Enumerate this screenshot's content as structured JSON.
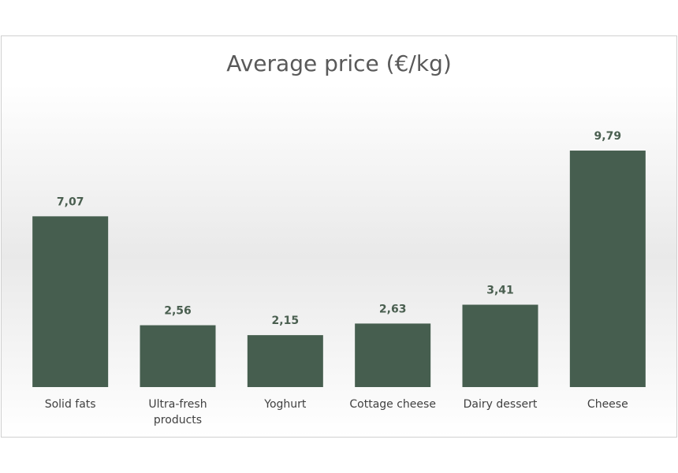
{
  "chart_data": {
    "type": "bar",
    "title": "Average price (€/kg)",
    "categories": [
      "Solid fats",
      "Ultra-fresh products",
      "Yoghurt",
      "Cottage cheese",
      "Dairy dessert",
      "Cheese"
    ],
    "values": [
      7.07,
      2.56,
      2.15,
      2.63,
      3.41,
      9.79
    ],
    "value_labels": [
      "7,07",
      "2,56",
      "2,15",
      "2,63",
      "3,41",
      "9,79"
    ],
    "color": "#465e4f"
  }
}
